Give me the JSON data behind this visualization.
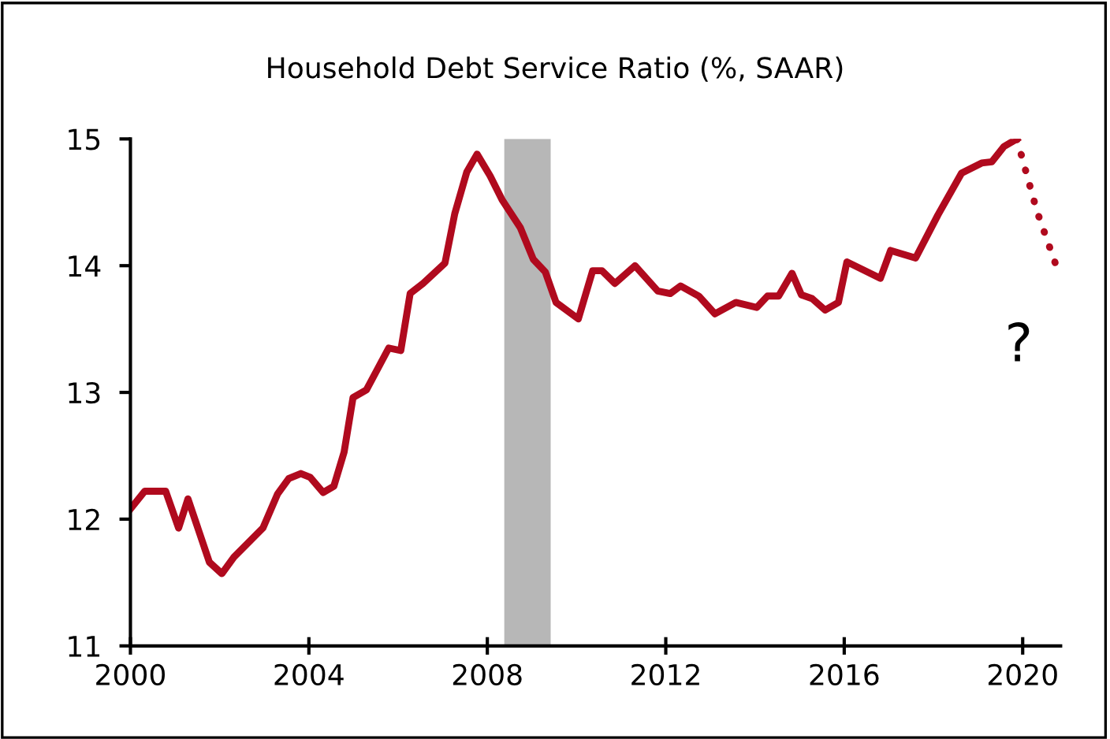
{
  "chart_data": {
    "type": "line",
    "title": "Household Debt Service Ratio (%, SAAR)",
    "xlim": [
      2000,
      2020.85
    ],
    "xticks": [
      2000,
      2004,
      2008,
      2012,
      2016,
      2020
    ],
    "ylim": [
      11,
      15
    ],
    "yticks": [
      11,
      12,
      13,
      14,
      15
    ],
    "grid": false,
    "legend": false,
    "marker": "none",
    "series": [
      {
        "color": "#b00a1e",
        "line_style": "solid",
        "x": [
          2000,
          2000.32,
          2000.79,
          2001.08,
          2001.29,
          2001.77,
          2002.05,
          2002.32,
          2002.97,
          2003.3,
          2003.55,
          2003.82,
          2004.03,
          2004.32,
          2004.56,
          2004.79,
          2004.99,
          2005.29,
          2005.79,
          2006.06,
          2006.27,
          2006.56,
          2007.05,
          2007.27,
          2007.54,
          2007.77,
          2008.06,
          2008.33,
          2008.74,
          2009.03,
          2009.3,
          2009.54,
          2010.04,
          2010.36,
          2010.57,
          2010.86,
          2011.31,
          2011.82,
          2012.1,
          2012.33,
          2012.74,
          2013.1,
          2013.57,
          2014.04,
          2014.28,
          2014.53,
          2014.83,
          2015.04,
          2015.28,
          2015.57,
          2015.87,
          2016.06,
          2016.81,
          2017.04,
          2017.6,
          2018.1,
          2018.63,
          2019.08,
          2019.31,
          2019.58,
          2019.87
        ],
        "values": [
          12.08,
          12.22,
          12.22,
          11.93,
          12.16,
          11.66,
          11.57,
          11.7,
          11.93,
          12.2,
          12.32,
          12.36,
          12.33,
          12.21,
          12.26,
          12.53,
          12.96,
          13.02,
          13.35,
          13.33,
          13.78,
          13.86,
          14.02,
          14.41,
          14.74,
          14.88,
          14.71,
          14.52,
          14.3,
          14.05,
          13.95,
          13.71,
          13.58,
          13.96,
          13.96,
          13.86,
          14.0,
          13.8,
          13.78,
          13.84,
          13.76,
          13.62,
          13.71,
          13.67,
          13.76,
          13.76,
          13.94,
          13.77,
          13.74,
          13.65,
          13.71,
          14.03,
          13.9,
          14.12,
          14.06,
          14.4,
          14.73,
          14.81,
          14.82,
          14.94,
          15.0
        ]
      },
      {
        "color": "#b00a1e",
        "line_style": "dotted",
        "x": [
          2019.87,
          2020.09,
          2020.32,
          2020.75
        ],
        "values": [
          15.0,
          14.72,
          14.43,
          14.0
        ]
      }
    ],
    "bands": [
      {
        "axis": "x",
        "from": 2008.38,
        "to": 2009.42,
        "color": "#b7b7b7"
      }
    ],
    "annotations": [
      "?"
    ]
  }
}
